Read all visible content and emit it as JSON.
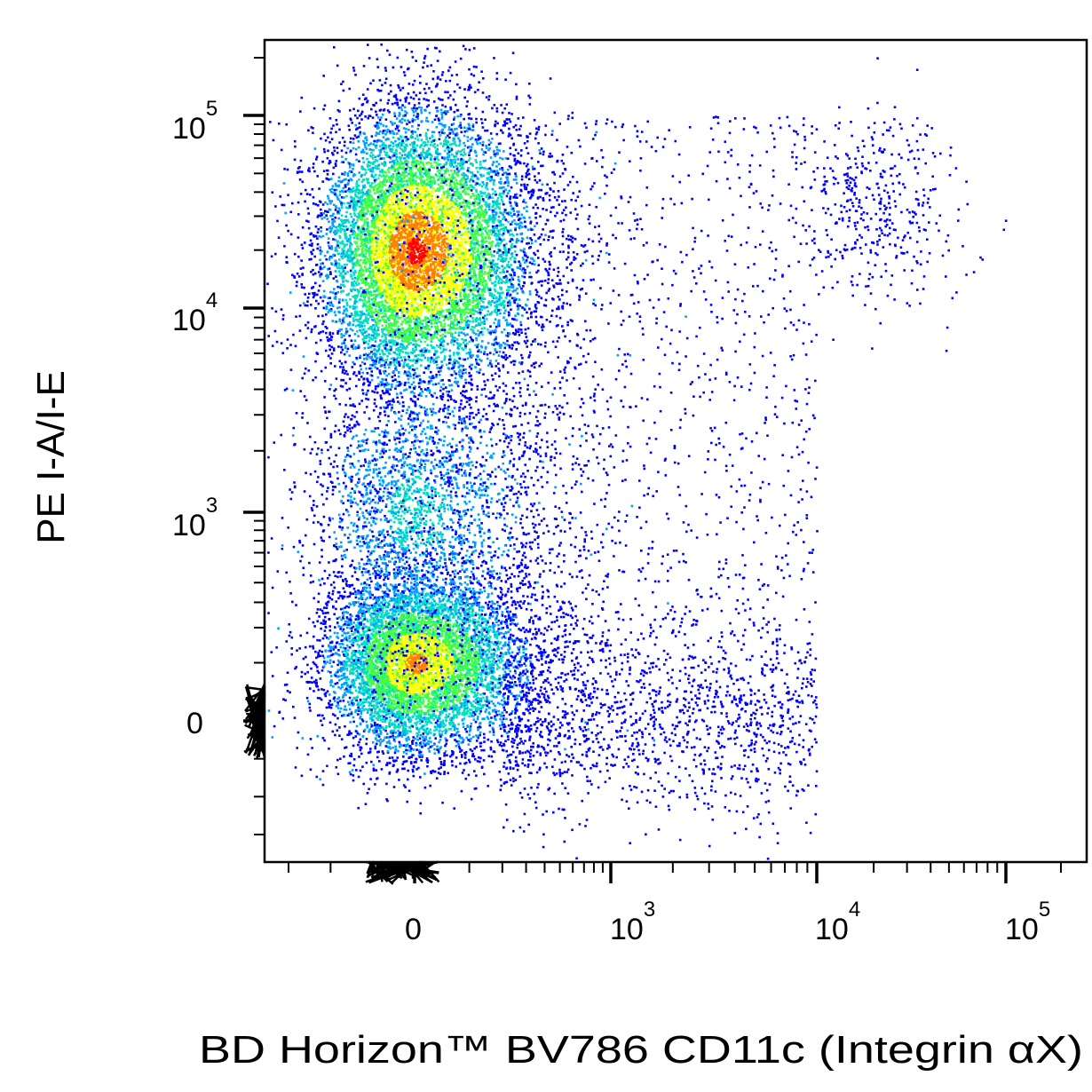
{
  "chart_data": {
    "type": "scatter",
    "subtype": "flow-cytometry-pseudocolor-density",
    "xlabel": "BD Horizon™ BV786 CD11c (Integrin αX)",
    "ylabel": "PE I-A/I-E",
    "x_scale": "biexponential",
    "y_scale": "biexponential",
    "x_ticks": [
      {
        "value": 0,
        "base": "0",
        "exp": ""
      },
      {
        "value": 1000,
        "base": "10",
        "exp": "3"
      },
      {
        "value": 10000,
        "base": "10",
        "exp": "4"
      },
      {
        "value": 100000,
        "base": "10",
        "exp": "5"
      }
    ],
    "y_ticks": [
      {
        "value": 0,
        "base": "0",
        "exp": ""
      },
      {
        "value": 1000,
        "base": "10",
        "exp": "3"
      },
      {
        "value": 10000,
        "base": "10",
        "exp": "4"
      },
      {
        "value": 100000,
        "base": "10",
        "exp": "5"
      }
    ],
    "xlim": [
      -300,
      200000
    ],
    "ylim": [
      -300,
      200000
    ],
    "grid": false,
    "colormap": [
      "#0000ff",
      "#00a0ff",
      "#00e0c0",
      "#40ff40",
      "#ffff00",
      "#ff8000",
      "#ff0000"
    ],
    "populations": [
      {
        "x_center": 0,
        "y_center": 20000,
        "density": "high"
      },
      {
        "x_center": 0,
        "y_center": 100,
        "density": "high"
      },
      {
        "x_center": 20000,
        "y_center": 35000,
        "density": "low"
      },
      {
        "x_center": 2000,
        "y_center": 2000,
        "density": "sparse"
      }
    ]
  }
}
